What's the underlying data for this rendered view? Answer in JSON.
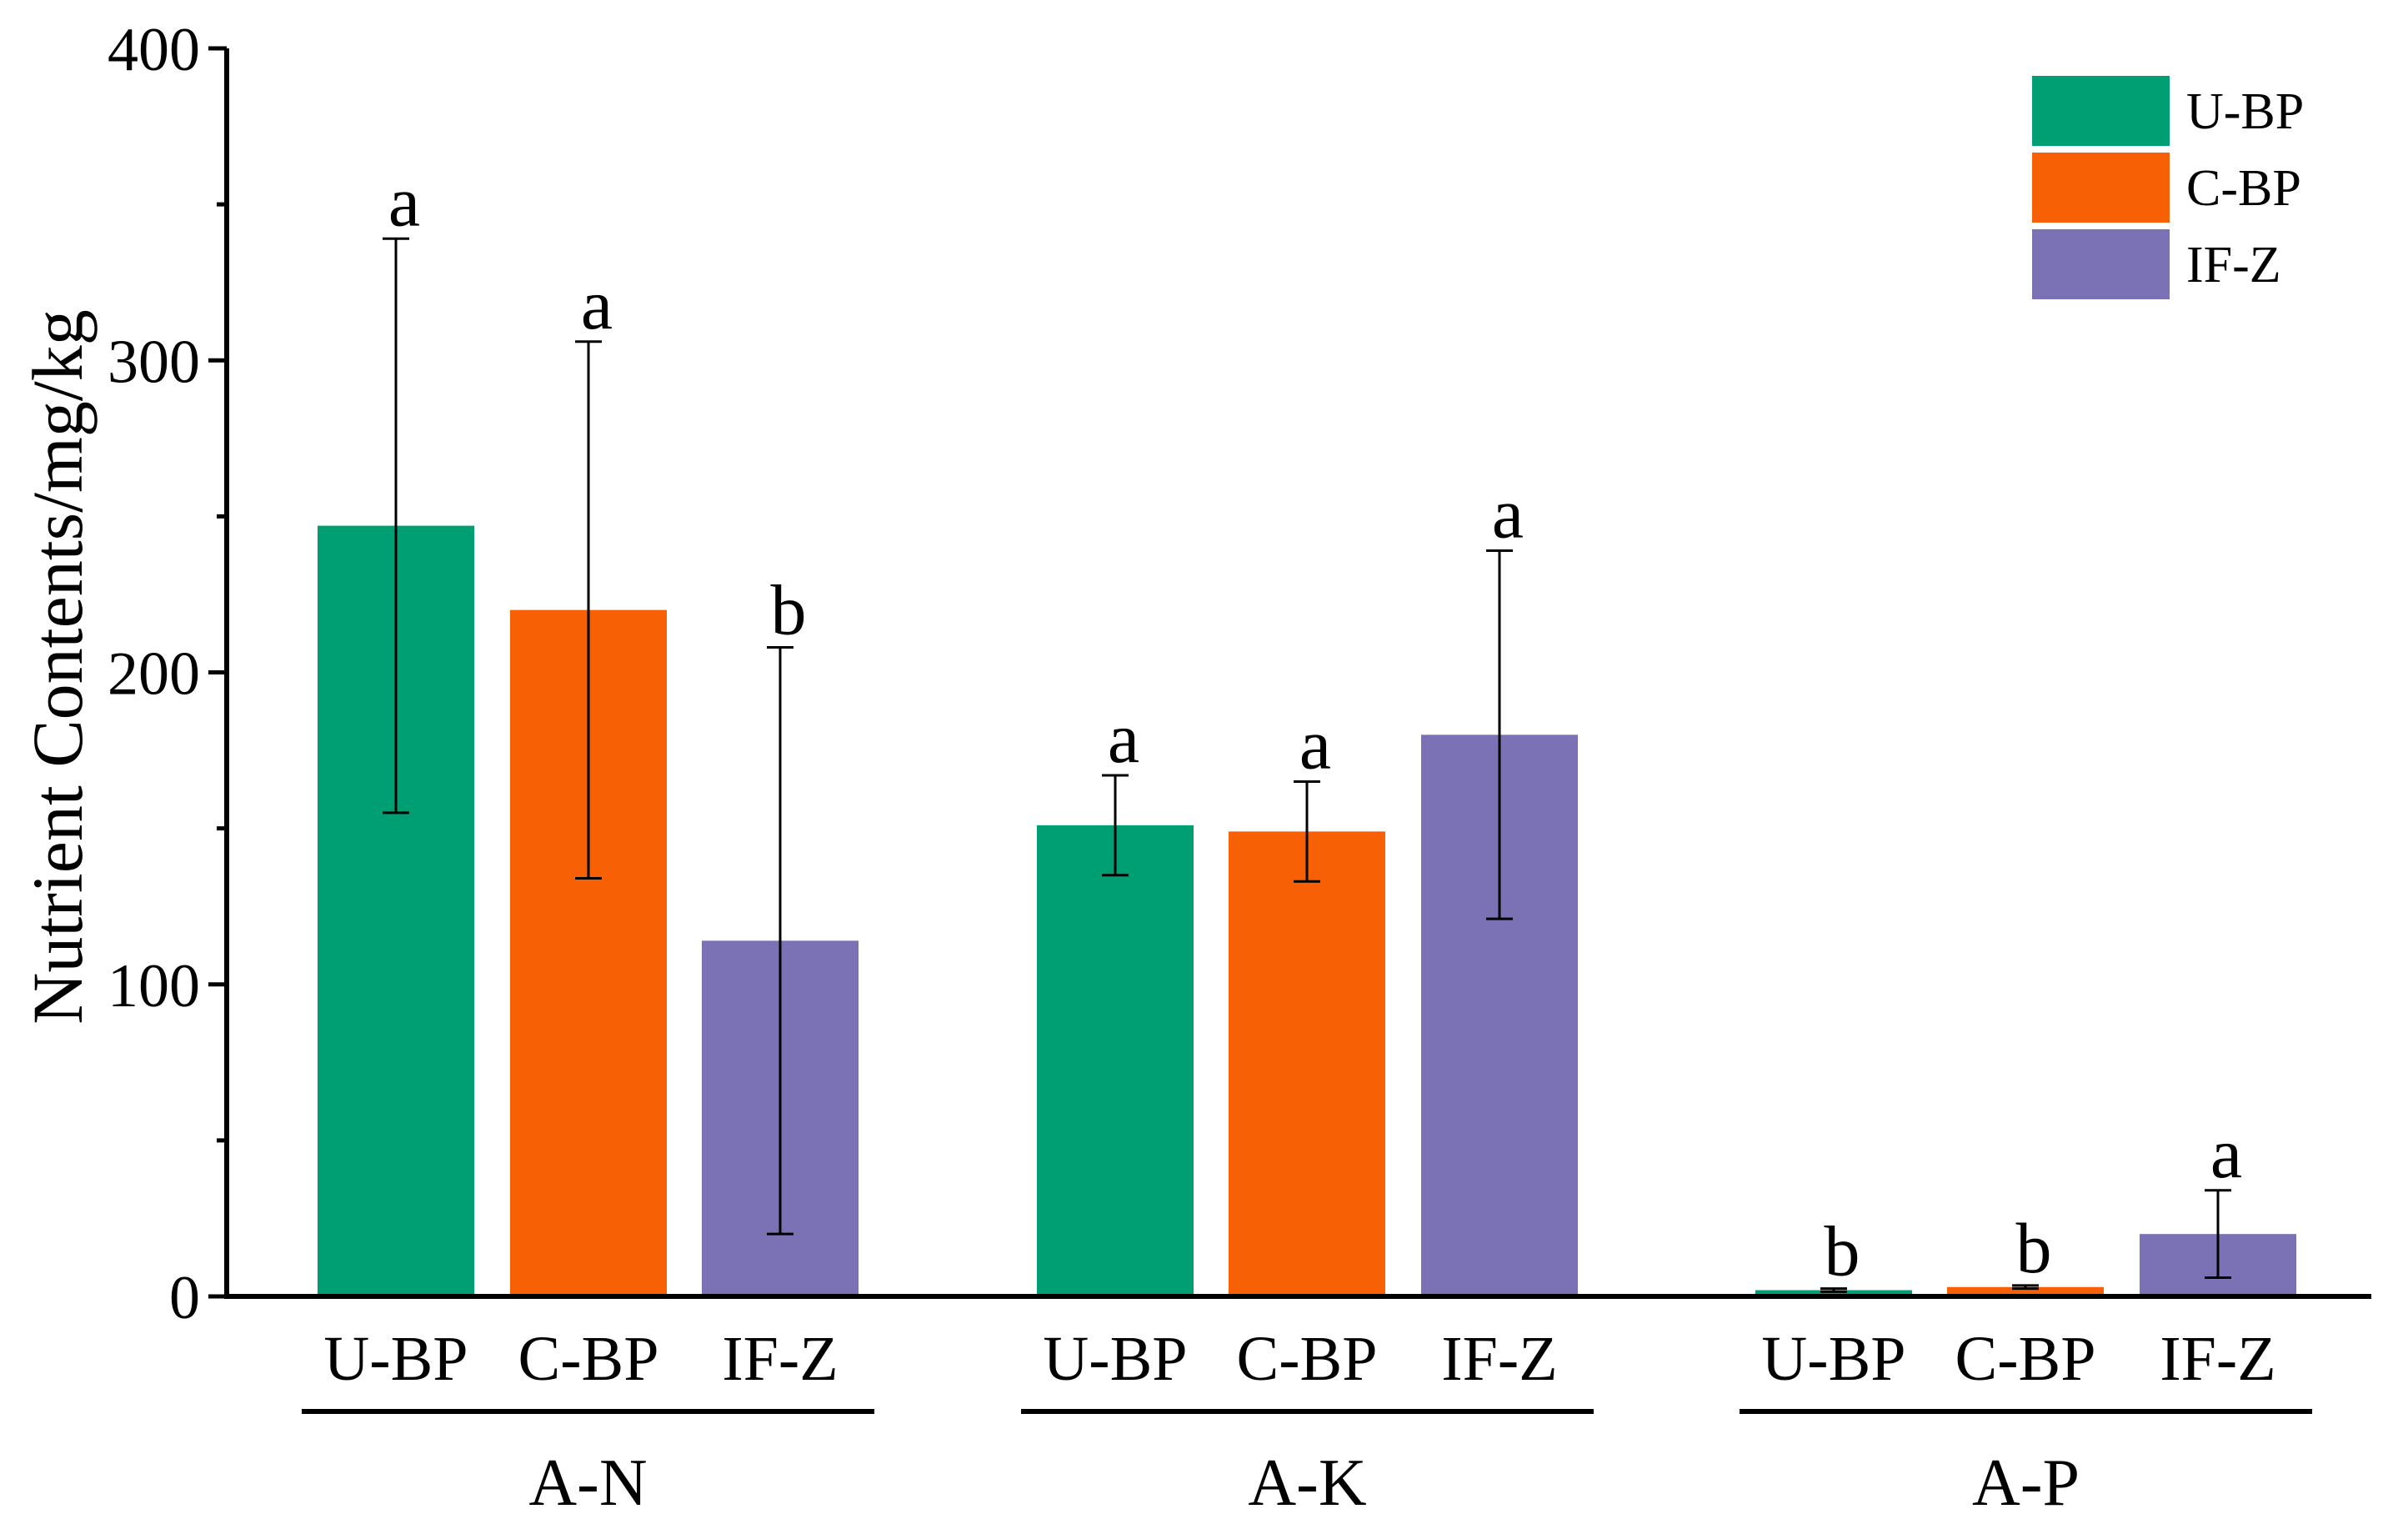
{
  "chart_data": {
    "type": "bar",
    "title": "",
    "xlabel": "",
    "ylabel": "Nutrient Contents/mg/kg",
    "ylim": [
      0,
      400
    ],
    "yticks": [
      0,
      100,
      200,
      300,
      400
    ],
    "grid": false,
    "legend_position": "top-right",
    "groups": [
      "A-N",
      "A-K",
      "A-P"
    ],
    "categories": [
      "U-BP",
      "C-BP",
      "IF-Z"
    ],
    "series": [
      {
        "name": "U-BP",
        "color": "#009E73",
        "values": [
          247,
          151,
          2
        ],
        "errors": [
          92,
          16,
          0.5
        ],
        "letters": [
          "a",
          "a",
          "b"
        ]
      },
      {
        "name": "C-BP",
        "color": "#F76005",
        "values": [
          220,
          149,
          3
        ],
        "errors": [
          86,
          16,
          0.5
        ],
        "letters": [
          "a",
          "a",
          "b"
        ]
      },
      {
        "name": "IF-Z",
        "color": "#7A72B5",
        "values": [
          114,
          180,
          20
        ],
        "errors": [
          94,
          59,
          14
        ],
        "letters": [
          "b",
          "a",
          "a"
        ]
      }
    ]
  }
}
